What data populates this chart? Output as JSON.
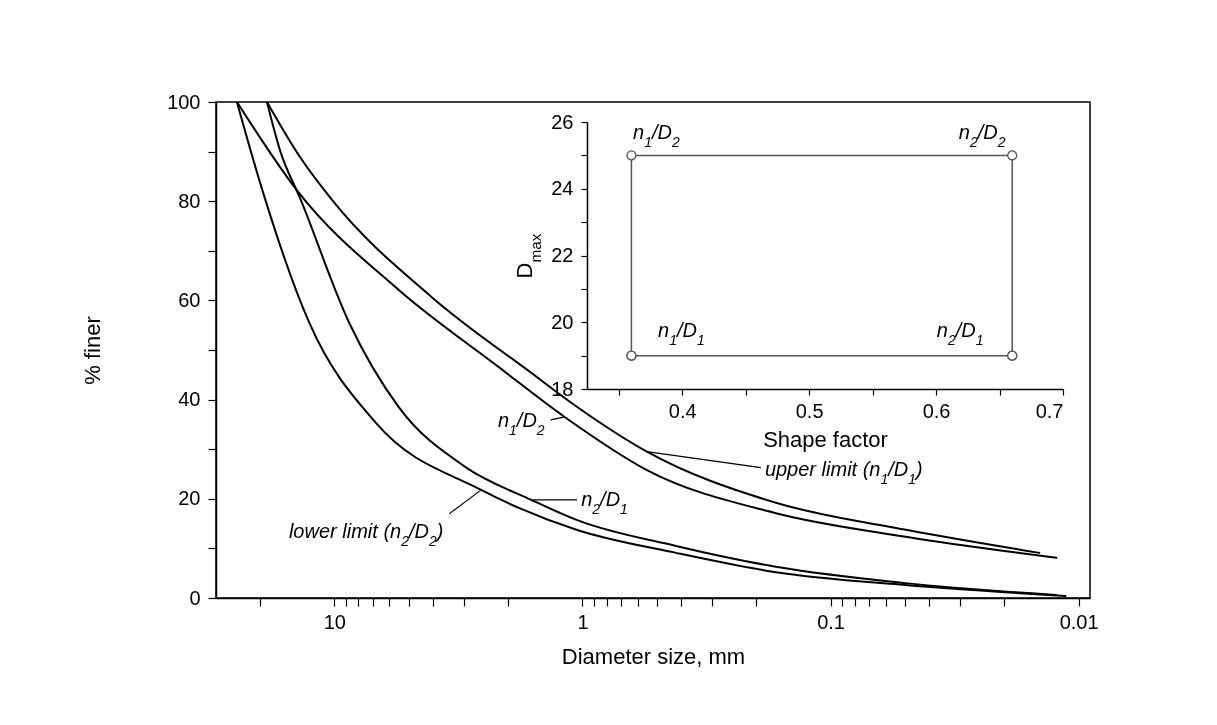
{
  "chart_data": [
    {
      "type": "line",
      "xlabel": "Diameter size, mm",
      "ylabel": "% finer",
      "log": "x",
      "xlim": [
        30,
        0.009
      ],
      "xticks": [
        {
          "value": 20,
          "label": null
        },
        10,
        {
          "value": 9,
          "label": null
        },
        {
          "value": 8,
          "label": null
        },
        {
          "value": 7,
          "label": null
        },
        {
          "value": 6,
          "label": null
        },
        {
          "value": 5,
          "label": null
        },
        {
          "value": 4,
          "label": null
        },
        {
          "value": 3,
          "label": null
        },
        {
          "value": 2,
          "label": null
        },
        1,
        {
          "value": 0.9,
          "label": null
        },
        {
          "value": 0.8,
          "label": null
        },
        {
          "value": 0.7,
          "label": null
        },
        {
          "value": 0.6,
          "label": null
        },
        {
          "value": 0.5,
          "label": null
        },
        {
          "value": 0.4,
          "label": null
        },
        {
          "value": 0.3,
          "label": null
        },
        {
          "value": 0.2,
          "label": null
        },
        0.1,
        {
          "value": 0.09,
          "label": null
        },
        {
          "value": 0.08,
          "label": null
        },
        {
          "value": 0.07,
          "label": null
        },
        {
          "value": 0.06,
          "label": null
        },
        {
          "value": 0.05,
          "label": null
        },
        {
          "value": 0.04,
          "label": null
        },
        {
          "value": 0.03,
          "label": null
        },
        {
          "value": 0.02,
          "label": null
        },
        0.01
      ],
      "ylim": [
        0,
        100
      ],
      "yticks": [
        0,
        {
          "value": 10,
          "label": null
        },
        20,
        {
          "value": 30,
          "label": null
        },
        40,
        {
          "value": 50,
          "label": null
        },
        60,
        {
          "value": 70,
          "label": null
        },
        80,
        {
          "value": 90,
          "label": null
        },
        100
      ],
      "series": [
        {
          "color": "#000000",
          "x": [
            18.7,
            13.8,
            10.2,
            4.06,
            1.61,
            1.05,
            0.55,
            0.166,
            0.049,
            0.0144
          ],
          "values": [
            100,
            89,
            80.2,
            60.7,
            45.4,
            38.5,
            29.5,
            19.2,
            13.7,
            9.1
          ]
        },
        {
          "color": "#000000",
          "x": [
            24.7,
            14.2,
            5.5,
            2.18,
            1.18,
            0.55,
            0.166,
            0.049,
            0.0123
          ],
          "values": [
            100,
            82.3,
            62.1,
            46.6,
            36.5,
            25.8,
            17.1,
            12.3,
            8.1
          ]
        },
        {
          "color": "#000000",
          "x": [
            18.7,
            16.5,
            13.8,
            8.7,
            5.5,
            2.96,
            1.61,
            1.05,
            0.42,
            0.166,
            0.05,
            0.0123
          ],
          "values": [
            100,
            90,
            80.8,
            55.4,
            38.5,
            26.4,
            19.8,
            15.7,
            10.5,
            6.3,
            3,
            0.6
          ]
        },
        {
          "color": "#000000",
          "x": [
            24.7,
            20,
            12.6,
            6.8,
            2.56,
            1.05,
            0.42,
            0.166,
            0.05,
            0.0113
          ],
          "values": [
            100,
            84,
            55.4,
            35.3,
            21.8,
            13.7,
            9.1,
            5.2,
            2.6,
            0.4
          ]
        }
      ],
      "annotations": [
        {
          "text": "n$_{1}$/D$_{2}$",
          "x": 1.18,
          "y": 36.5
        },
        {
          "text": "upper limit (n$_{1}$/D$_{1}$)",
          "x": 0.55,
          "y": 29.5
        },
        {
          "text": "n$_{2}$/D$_{1}$",
          "x": 1.61,
          "y": 19.8
        },
        {
          "text": "lower limit (n$_{2}$/D$_{2}$)",
          "x": 2.56,
          "y": 21.8
        }
      ],
      "grid": false,
      "marker": "none"
    },
    {
      "type": "line",
      "xlabel": "Shape factor",
      "ylabel": "D$_{max}$",
      "xlim": [
        0.325,
        0.7
      ],
      "xticks": [
        {
          "value": 0.35,
          "label": null
        },
        0.4,
        {
          "value": 0.45,
          "label": null
        },
        0.5,
        {
          "value": 0.55,
          "label": null
        },
        0.6,
        {
          "value": 0.65,
          "label": null
        },
        0.7
      ],
      "ylim": [
        18,
        26
      ],
      "yticks": [
        18,
        {
          "value": 19,
          "label": null
        },
        20,
        {
          "value": 21,
          "label": null
        },
        22,
        {
          "value": 23,
          "label": null
        },
        24,
        {
          "value": 25,
          "label": null
        },
        26
      ],
      "series": [
        {
          "color": "#555555",
          "x": [
            0.36,
            0.36,
            0.66,
            0.66
          ],
          "values": [
            19,
            25,
            25,
            19
          ]
        },
        {
          "color": "#555555",
          "x": [
            0.36,
            0.66
          ],
          "values": [
            19,
            19
          ]
        }
      ],
      "annotations": [
        {
          "text": "n$_{1}$/D$_{2}$",
          "x": 0.36,
          "y": 25
        },
        {
          "text": "n$_{2}$/D$_{2}$",
          "x": 0.66,
          "y": 25
        },
        {
          "text": "n$_{1}$/D$_{1}$",
          "x": 0.36,
          "y": 19
        },
        {
          "text": "n$_{2}$/D$_{1}$",
          "x": 0.66,
          "y": 19
        }
      ],
      "grid": false,
      "marker": "circle"
    }
  ]
}
